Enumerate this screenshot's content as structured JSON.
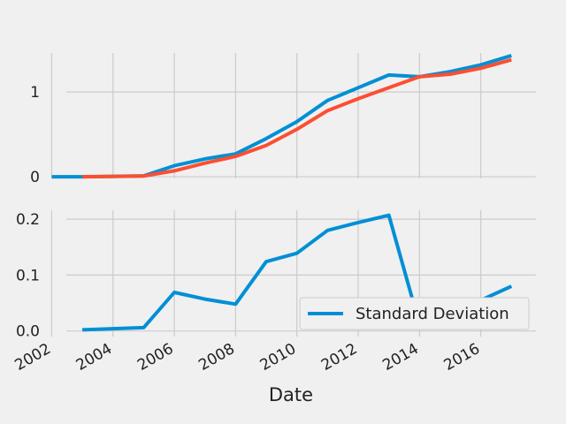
{
  "chart_data": [
    {
      "type": "line",
      "title": "",
      "xlabel": "",
      "ylabel": "",
      "xlim": [
        2001.9,
        2017.8
      ],
      "ylim": [
        -0.02,
        1.46
      ],
      "x_ticks": [
        2002,
        2004,
        2006,
        2008,
        2010,
        2012,
        2014,
        2016
      ],
      "y_ticks": [
        0,
        1
      ],
      "y_tick_labels": [
        "0",
        "1"
      ],
      "grid": true,
      "series": [
        {
          "color": "#008fd5",
          "x": [
            2002,
            2003,
            2004,
            2005,
            2006,
            2007,
            2008,
            2009,
            2010,
            2011,
            2012,
            2013,
            2014,
            2015,
            2016,
            2017
          ],
          "y": [
            0.0,
            0.0,
            0.005,
            0.01,
            0.13,
            0.21,
            0.27,
            0.45,
            0.65,
            0.9,
            1.05,
            1.2,
            1.18,
            1.24,
            1.32,
            1.43
          ]
        },
        {
          "color": "#fc4f30",
          "x": [
            2003,
            2004,
            2005,
            2006,
            2007,
            2008,
            2009,
            2010,
            2011,
            2012,
            2013,
            2014,
            2015,
            2016,
            2017
          ],
          "y": [
            0.0,
            0.003,
            0.008,
            0.07,
            0.16,
            0.24,
            0.37,
            0.56,
            0.78,
            0.92,
            1.05,
            1.18,
            1.21,
            1.28,
            1.38
          ]
        }
      ]
    },
    {
      "type": "line",
      "title": "",
      "xlabel": "Date",
      "ylabel": "",
      "xlim": [
        2001.9,
        2017.8
      ],
      "ylim": [
        -0.01,
        0.216
      ],
      "x_ticks": [
        2002,
        2004,
        2006,
        2008,
        2010,
        2012,
        2014,
        2016
      ],
      "y_ticks": [
        0.0,
        0.1,
        0.2
      ],
      "y_tick_labels": [
        "0.0",
        "0.1",
        "0.2"
      ],
      "grid": true,
      "legend_position": "lower-right",
      "series": [
        {
          "name": "Standard Deviation",
          "color": "#008fd5",
          "x": [
            2003,
            2004,
            2005,
            2006,
            2007,
            2008,
            2009,
            2010,
            2011,
            2012,
            2013,
            2014,
            2015,
            2016,
            2017
          ],
          "y": [
            0.002,
            0.004,
            0.006,
            0.069,
            0.057,
            0.048,
            0.124,
            0.139,
            0.18,
            0.194,
            0.207,
            0.012,
            0.035,
            0.055,
            0.08
          ]
        }
      ]
    }
  ],
  "x_tick_labels": [
    "2002",
    "2004",
    "2006",
    "2008",
    "2010",
    "2012",
    "2014",
    "2016"
  ]
}
